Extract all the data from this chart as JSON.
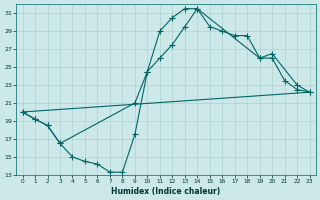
{
  "xlabel": "Humidex (Indice chaleur)",
  "bg_color": "#cce8e8",
  "grid_color": "#b0d0d0",
  "line_color": "#006666",
  "xlim": [
    0,
    23
  ],
  "ylim": [
    13,
    32
  ],
  "yticks": [
    13,
    15,
    17,
    19,
    21,
    23,
    25,
    27,
    29,
    31
  ],
  "xticks": [
    0,
    1,
    2,
    3,
    4,
    5,
    6,
    7,
    8,
    9,
    10,
    11,
    12,
    13,
    14,
    15,
    16,
    17,
    18,
    19,
    20,
    21,
    22,
    23
  ],
  "curve1_x": [
    0,
    1,
    2,
    3,
    4,
    5,
    6,
    7,
    8,
    9,
    10,
    11,
    12,
    13,
    14,
    15,
    16,
    17,
    18,
    19,
    20,
    21,
    22,
    23
  ],
  "curve1_y": [
    20.0,
    19.2,
    18.5,
    16.5,
    15.0,
    14.5,
    14.2,
    13.3,
    13.3,
    17.5,
    24.5,
    29.0,
    30.5,
    31.5,
    31.5,
    29.5,
    29.0,
    28.5,
    28.5,
    26.0,
    26.0,
    23.5,
    22.5,
    22.2
  ],
  "curve2_x": [
    0,
    1,
    2,
    3,
    9,
    10,
    11,
    12,
    13,
    14,
    19,
    20,
    22,
    23
  ],
  "curve2_y": [
    20.0,
    19.2,
    18.5,
    16.5,
    21.0,
    24.5,
    26.0,
    27.5,
    29.5,
    31.5,
    26.0,
    26.5,
    23.0,
    22.2
  ],
  "curve3_x": [
    0,
    23
  ],
  "curve3_y": [
    20.0,
    22.2
  ]
}
